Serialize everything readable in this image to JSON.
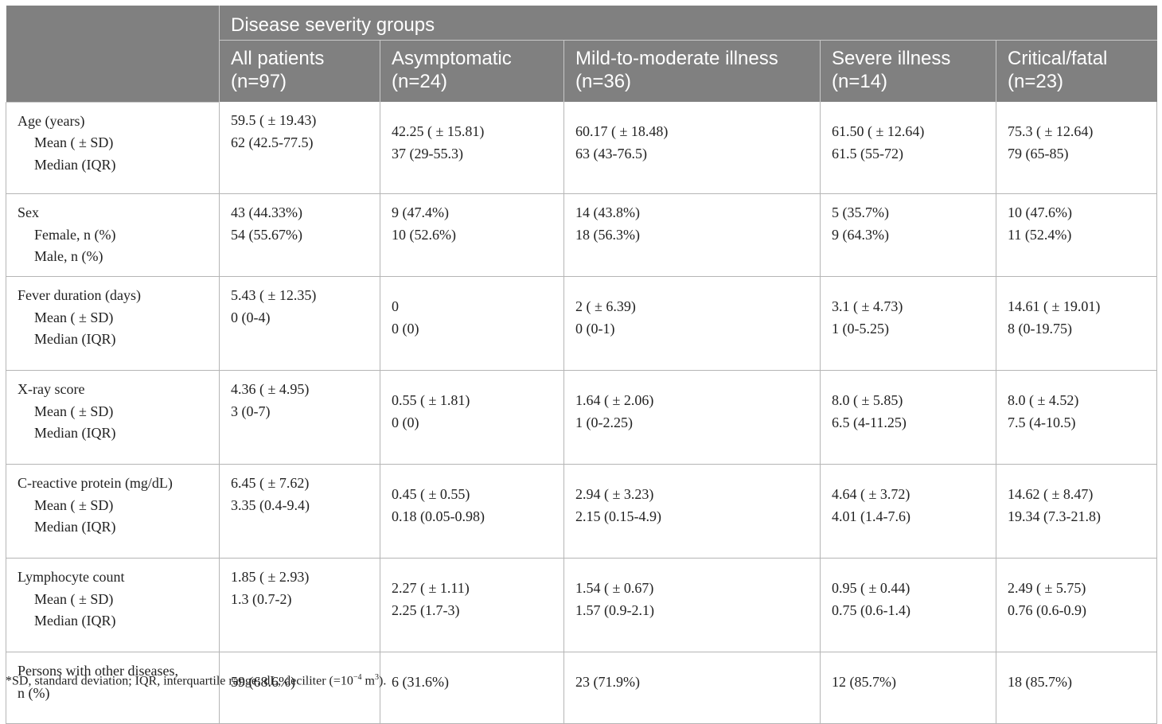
{
  "header": {
    "group_label": "Disease severity groups",
    "columns": [
      {
        "line1": "All patients",
        "line2": "(n=97)"
      },
      {
        "line1": "Asymptomatic",
        "line2": "(n=24)"
      },
      {
        "line1": "Mild-to-moderate illness",
        "line2": "(n=36)"
      },
      {
        "line1": "Severe illness",
        "line2": "(n=14)"
      },
      {
        "line1": "Critical/fatal",
        "line2": "(n=23)"
      }
    ]
  },
  "rows": [
    {
      "label": "Age (years)",
      "sub1": "Mean ( ± SD)",
      "sub2": "Median (IQR)",
      "cells": [
        [
          "59.5 ( ± 19.43)",
          "62 (42.5-77.5)"
        ],
        [
          "42.25 ( ± 15.81)",
          "37 (29-55.3)"
        ],
        [
          "60.17 ( ± 18.48)",
          "63 (43-76.5)"
        ],
        [
          "61.50 ( ± 12.64)",
          "61.5 (55-72)"
        ],
        [
          "75.3 ( ± 12.64)",
          "79 (65-85)"
        ]
      ]
    },
    {
      "label": "Sex",
      "sub1": "Female, n (%)",
      "sub2": "Male, n (%)",
      "cells": [
        [
          "43 (44.33%)",
          "54 (55.67%)"
        ],
        [
          "9 (47.4%)",
          "10 (52.6%)"
        ],
        [
          "14 (43.8%)",
          "18 (56.3%)"
        ],
        [
          "5 (35.7%)",
          "9 (64.3%)"
        ],
        [
          "10 (47.6%)",
          "11 (52.4%)"
        ]
      ]
    },
    {
      "label": "Fever duration (days)",
      "sub1": "Mean ( ± SD)",
      "sub2": "Median (IQR)",
      "cells": [
        [
          "5.43 ( ± 12.35)",
          "0 (0-4)"
        ],
        [
          "0",
          "0 (0)"
        ],
        [
          "2 ( ± 6.39)",
          "0 (0-1)"
        ],
        [
          "3.1 ( ± 4.73)",
          "1 (0-5.25)"
        ],
        [
          "14.61 ( ± 19.01)",
          "8 (0-19.75)"
        ]
      ]
    },
    {
      "label": "X-ray score",
      "sub1": "Mean ( ± SD)",
      "sub2": "Median (IQR)",
      "cells": [
        [
          "4.36 ( ± 4.95)",
          "3 (0-7)"
        ],
        [
          "0.55 ( ± 1.81)",
          "0 (0)"
        ],
        [
          "1.64 ( ± 2.06)",
          "1 (0-2.25)"
        ],
        [
          "8.0 ( ± 5.85)",
          "6.5 (4-11.25)"
        ],
        [
          "8.0 ( ± 4.52)",
          "7.5 (4-10.5)"
        ]
      ]
    },
    {
      "label": "C-reactive protein (mg/dL)",
      "sub1": "Mean ( ± SD)",
      "sub2": "Median (IQR)",
      "cells": [
        [
          "6.45 ( ± 7.62)",
          "3.35 (0.4-9.4)"
        ],
        [
          "0.45 ( ± 0.55)",
          "0.18 (0.05-0.98)"
        ],
        [
          "2.94 ( ± 3.23)",
          "2.15 (0.15-4.9)"
        ],
        [
          "4.64 ( ± 3.72)",
          "4.01 (1.4-7.6)"
        ],
        [
          "14.62 ( ± 8.47)",
          "19.34 (7.3-21.8)"
        ]
      ]
    },
    {
      "label": "Lymphocyte count",
      "sub1": "Mean ( ± SD)",
      "sub2": "Median (IQR)",
      "cells": [
        [
          "1.85 ( ± 2.93)",
          "1.3 (0.7-2)"
        ],
        [
          "2.27 ( ± 1.11)",
          "2.25 (1.7-3)"
        ],
        [
          "1.54 ( ± 0.67)",
          "1.57 (0.9-2.1)"
        ],
        [
          "0.95 ( ± 0.44)",
          "0.75 (0.6-1.4)"
        ],
        [
          "2.49 ( ± 5.75)",
          "0.76 (0.6-0.9)"
        ]
      ]
    },
    {
      "label": "Persons with other diseases,",
      "label2": "n (%)",
      "cells": [
        "59 (68.6%)",
        "6 (31.6%)",
        "23 (71.9%)",
        "12 (85.7%)",
        "18 (85.7%)"
      ]
    }
  ],
  "footnote": {
    "before_exp": "*SD, standard deviation; IQR, interquartile range; dL, deciliter (=10",
    "exp1": "−4",
    "middle": " m",
    "exp2": "3",
    "after": ")."
  },
  "colors": {
    "header_bg": "#808080",
    "header_text": "#ffffff",
    "border": "#b5b5b5"
  }
}
